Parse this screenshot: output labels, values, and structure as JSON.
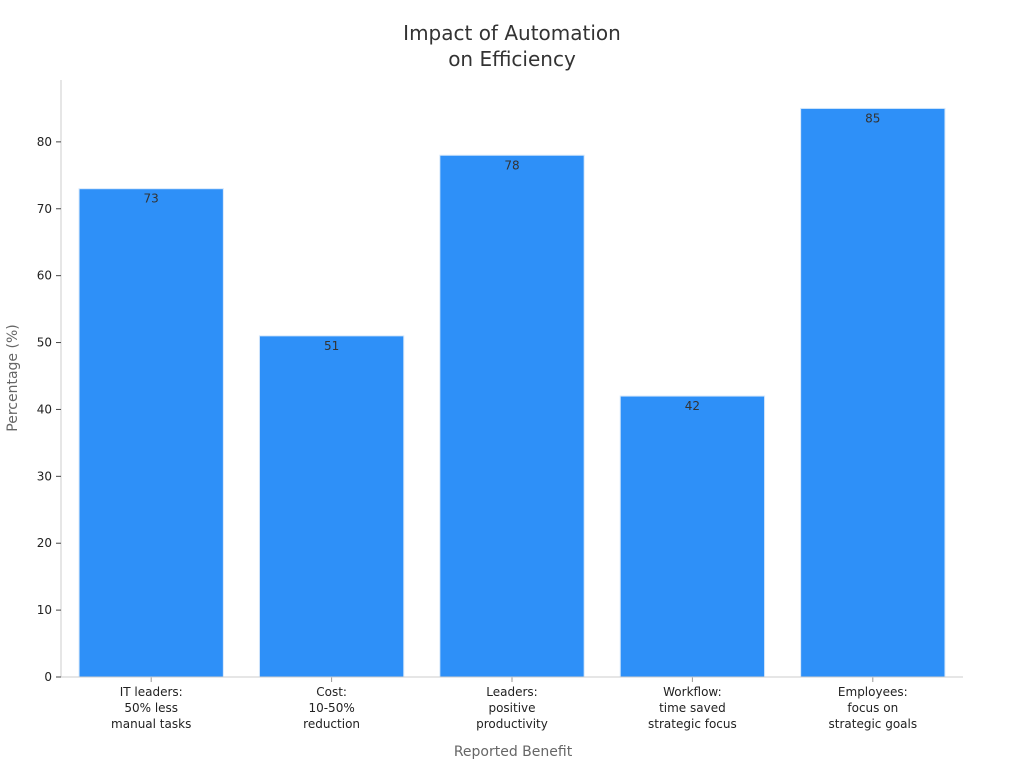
{
  "chart_data": {
    "type": "bar",
    "title_lines": [
      "Impact of Automation",
      "on Efficiency"
    ],
    "xlabel": "Reported Benefit",
    "ylabel": "Percentage (%)",
    "categories": [
      [
        "IT leaders:",
        "50% less",
        "manual tasks"
      ],
      [
        "Cost:",
        "10-50%",
        "reduction"
      ],
      [
        "Leaders:",
        "positive",
        "productivity"
      ],
      [
        "Workflow:",
        "time saved",
        "strategic focus"
      ],
      [
        "Employees:",
        "focus on",
        "strategic goals"
      ]
    ],
    "values": [
      73,
      51,
      78,
      42,
      85
    ],
    "yticks": [
      0,
      10,
      20,
      30,
      40,
      50,
      60,
      70,
      80
    ],
    "ylim": [
      0,
      89.25
    ],
    "grid": false,
    "bar_color": "#2E90F8",
    "bar_edge_color": "#D6E8FB"
  }
}
